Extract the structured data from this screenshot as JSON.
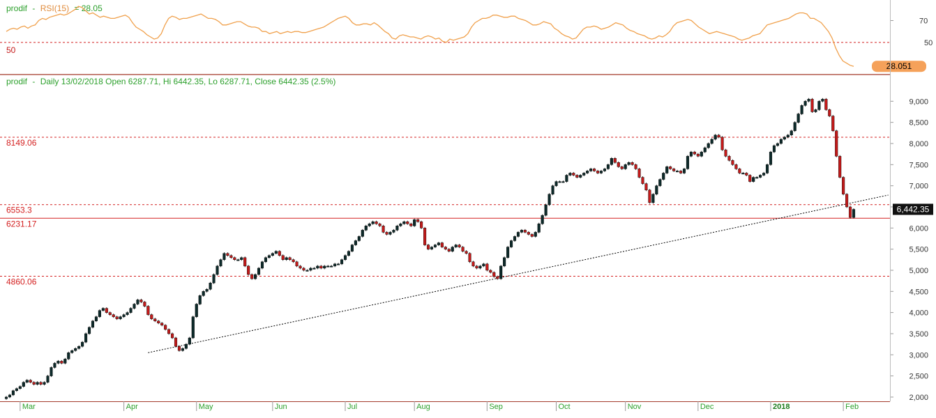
{
  "colors": {
    "background": "#ffffff",
    "up_candle": "#0d2a2a",
    "down_candle": "#c41a1a",
    "rsi_line": "#f0a04b",
    "level_line": "#d42020",
    "legend_green": "#2ca02c",
    "axis_text": "#333333",
    "separator": "#a33b2b"
  },
  "chart_data": [
    {
      "type": "line",
      "name": "rsi-panel",
      "legend": {
        "symbol": "prodif",
        "separator": "-",
        "indicator": "RSI(15)",
        "value_text": "= 28.05"
      },
      "yticks": [
        70
      ],
      "hline_label": "50",
      "hline_value": 50,
      "hline_value_label": "50",
      "ylim": [
        25,
        85
      ],
      "last_value_badge": "28.051",
      "series": [
        {
          "values": [
            60,
            62,
            63,
            62,
            64,
            65,
            63,
            65,
            66,
            70,
            72,
            71,
            73,
            74,
            75,
            76,
            75,
            76,
            78,
            80,
            83,
            82,
            79,
            76,
            77,
            75,
            73,
            74,
            73,
            72,
            72,
            73,
            74,
            75,
            73,
            68,
            64,
            62,
            60,
            57,
            55,
            53,
            54,
            58,
            66,
            72,
            74,
            73,
            71,
            72,
            72,
            73,
            74,
            75,
            76,
            74,
            72,
            72,
            71,
            69,
            66,
            66,
            67,
            68,
            69,
            69,
            67,
            65,
            64,
            64,
            63,
            60,
            60,
            58,
            59,
            60,
            58,
            59,
            60,
            59,
            60,
            60,
            59,
            59,
            60,
            61,
            62,
            63,
            64,
            66,
            68,
            70,
            72,
            73,
            74,
            72,
            68,
            66,
            66,
            67,
            67,
            66,
            68,
            66,
            63,
            60,
            58,
            54,
            53,
            56,
            57,
            56,
            55,
            55,
            54,
            53,
            55,
            56,
            55,
            53,
            54,
            51,
            50,
            53,
            52,
            53,
            54,
            55,
            58,
            64,
            68,
            70,
            72,
            72,
            73,
            75,
            75,
            74,
            73,
            73,
            74,
            74,
            72,
            71,
            70,
            68,
            66,
            66,
            67,
            69,
            68,
            67,
            63,
            61,
            58,
            56,
            55,
            53,
            54,
            58,
            62,
            64,
            64,
            65,
            64,
            62,
            63,
            64,
            66,
            68,
            67,
            66,
            63,
            61,
            60,
            58,
            57,
            56,
            54,
            53,
            54,
            56,
            55,
            57,
            60,
            65,
            68,
            69,
            70,
            71,
            70,
            67,
            64,
            62,
            60,
            58,
            59,
            60,
            59,
            58,
            57,
            56,
            55,
            53,
            52,
            53,
            54,
            56,
            57,
            58,
            62,
            66,
            67,
            68,
            69,
            70,
            71,
            72,
            74,
            76,
            77,
            77,
            76,
            72,
            72,
            70,
            68,
            64,
            60,
            54,
            45,
            38,
            33,
            31,
            29,
            28.05
          ]
        }
      ]
    },
    {
      "type": "candlestick",
      "name": "price-panel",
      "legend": {
        "symbol": "prodif",
        "separator": "-",
        "info": "Daily 13/02/2018 Open 6287.71, Hi 6442.35, Lo 6287.71, Close 6442.35 (2.5%)"
      },
      "ylim": [
        1900,
        9500
      ],
      "yticks": [
        2000,
        2500,
        3000,
        3500,
        4000,
        4500,
        5000,
        5500,
        6000,
        6500,
        7000,
        7500,
        8000,
        8500,
        9000
      ],
      "ytick_labels": [
        "2,000",
        "2,500",
        "3,000",
        "3,500",
        "4,000",
        "4,500",
        "5,000",
        "5,500",
        "6,000",
        "6,500",
        "7,000",
        "7,500",
        "8,000",
        "8,500",
        "9,000"
      ],
      "xlabels": [
        "Mar",
        "Apr",
        "May",
        "Jun",
        "Jul",
        "Aug",
        "Sep",
        "Oct",
        "Nov",
        "Dec",
        "2018",
        "Feb"
      ],
      "xlabel_index": [
        4,
        34,
        55,
        77,
        98,
        118,
        139,
        159,
        179,
        200,
        221,
        242
      ],
      "levels": [
        {
          "value": 8149.06,
          "label": "8149.06",
          "style": "dashed"
        },
        {
          "value": 6553.3,
          "label": "6553.3",
          "style": "dashed"
        },
        {
          "value": 6231.17,
          "label": "6231.17",
          "style": "solid"
        },
        {
          "value": 4860.06,
          "label": "4860.06",
          "style": "dashed"
        }
      ],
      "trendline": {
        "from": [
          41,
          3050
        ],
        "to": [
          255,
          6780
        ]
      },
      "last_value_badge": "6,442.35",
      "closes": [
        2000,
        2050,
        2150,
        2200,
        2250,
        2350,
        2400,
        2350,
        2300,
        2350,
        2300,
        2350,
        2500,
        2700,
        2800,
        2850,
        2800,
        2900,
        3050,
        3100,
        3150,
        3200,
        3300,
        3500,
        3650,
        3800,
        3900,
        4050,
        4100,
        4000,
        3950,
        3900,
        3850,
        3900,
        3950,
        4000,
        4100,
        4200,
        4300,
        4250,
        4150,
        3950,
        3850,
        3800,
        3750,
        3700,
        3600,
        3500,
        3400,
        3200,
        3100,
        3150,
        3250,
        3400,
        3900,
        4200,
        4400,
        4500,
        4550,
        4700,
        4900,
        5100,
        5250,
        5400,
        5350,
        5300,
        5250,
        5250,
        5300,
        5100,
        4900,
        4800,
        4900,
        5050,
        5200,
        5300,
        5350,
        5400,
        5450,
        5350,
        5250,
        5300,
        5250,
        5200,
        5100,
        5050,
        5000,
        5000,
        5050,
        5050,
        5100,
        5050,
        5100,
        5100,
        5100,
        5150,
        5150,
        5250,
        5350,
        5450,
        5600,
        5700,
        5800,
        5950,
        6050,
        6100,
        6150,
        6100,
        6050,
        5900,
        5850,
        5900,
        5950,
        6050,
        6100,
        6150,
        6100,
        6050,
        6200,
        6150,
        6000,
        5600,
        5500,
        5550,
        5600,
        5650,
        5550,
        5500,
        5450,
        5550,
        5600,
        5550,
        5450,
        5400,
        5200,
        5100,
        5050,
        5100,
        5150,
        5000,
        4950,
        4850,
        4800,
        5100,
        5300,
        5550,
        5700,
        5800,
        5900,
        5950,
        5900,
        5850,
        5800,
        5900,
        6100,
        6300,
        6550,
        6800,
        7000,
        7100,
        7100,
        7100,
        7250,
        7300,
        7250,
        7200,
        7250,
        7300,
        7350,
        7400,
        7350,
        7300,
        7350,
        7400,
        7500,
        7650,
        7550,
        7450,
        7400,
        7500,
        7550,
        7500,
        7400,
        7200,
        7050,
        6900,
        6600,
        6800,
        7000,
        7150,
        7300,
        7450,
        7400,
        7350,
        7350,
        7300,
        7400,
        7700,
        7800,
        7750,
        7700,
        7800,
        7900,
        8000,
        8100,
        8200,
        8150,
        7850,
        7700,
        7600,
        7500,
        7400,
        7300,
        7300,
        7250,
        7100,
        7200,
        7200,
        7250,
        7300,
        7500,
        7800,
        7950,
        8000,
        8100,
        8150,
        8200,
        8300,
        8500,
        8700,
        8900,
        9000,
        9050,
        8750,
        8800,
        9000,
        9050,
        8800,
        8650,
        8300,
        7700,
        7200,
        6800,
        6500,
        6250,
        6442.35
      ]
    }
  ]
}
